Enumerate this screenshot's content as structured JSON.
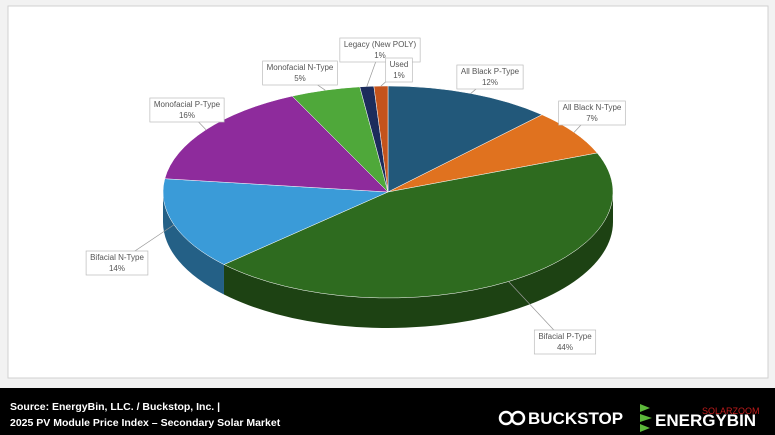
{
  "chart_data": {
    "type": "pie3d",
    "categories": [
      "All Black P-Type",
      "All Black N-Type",
      "Bifacial P-Type",
      "Bifacial N-Type",
      "Monofacial P-Type",
      "Monofacial N-Type",
      "Legacy (New POLY)",
      "Used"
    ],
    "values": [
      12,
      7,
      44,
      14,
      16,
      5,
      1,
      1
    ],
    "value_labels": [
      "12%",
      "7%",
      "44%",
      "14%",
      "16%",
      "5%",
      "1%",
      "1%"
    ],
    "colors": [
      "#22587a",
      "#e0721f",
      "#2e6b1f",
      "#3a9bd8",
      "#8e2b9c",
      "#4fa83a",
      "#1c2c5c",
      "#c4531c"
    ]
  },
  "footer": {
    "source_line1": "Source: EnergyBin, LLC. / Buckstop, Inc. |",
    "source_line2": "2025 PV Module Price Index – Secondary Solar Market",
    "logo1": "BUCKSTOP",
    "logo2": "ENERGYBIN",
    "watermark": "SOLARZOOM"
  }
}
